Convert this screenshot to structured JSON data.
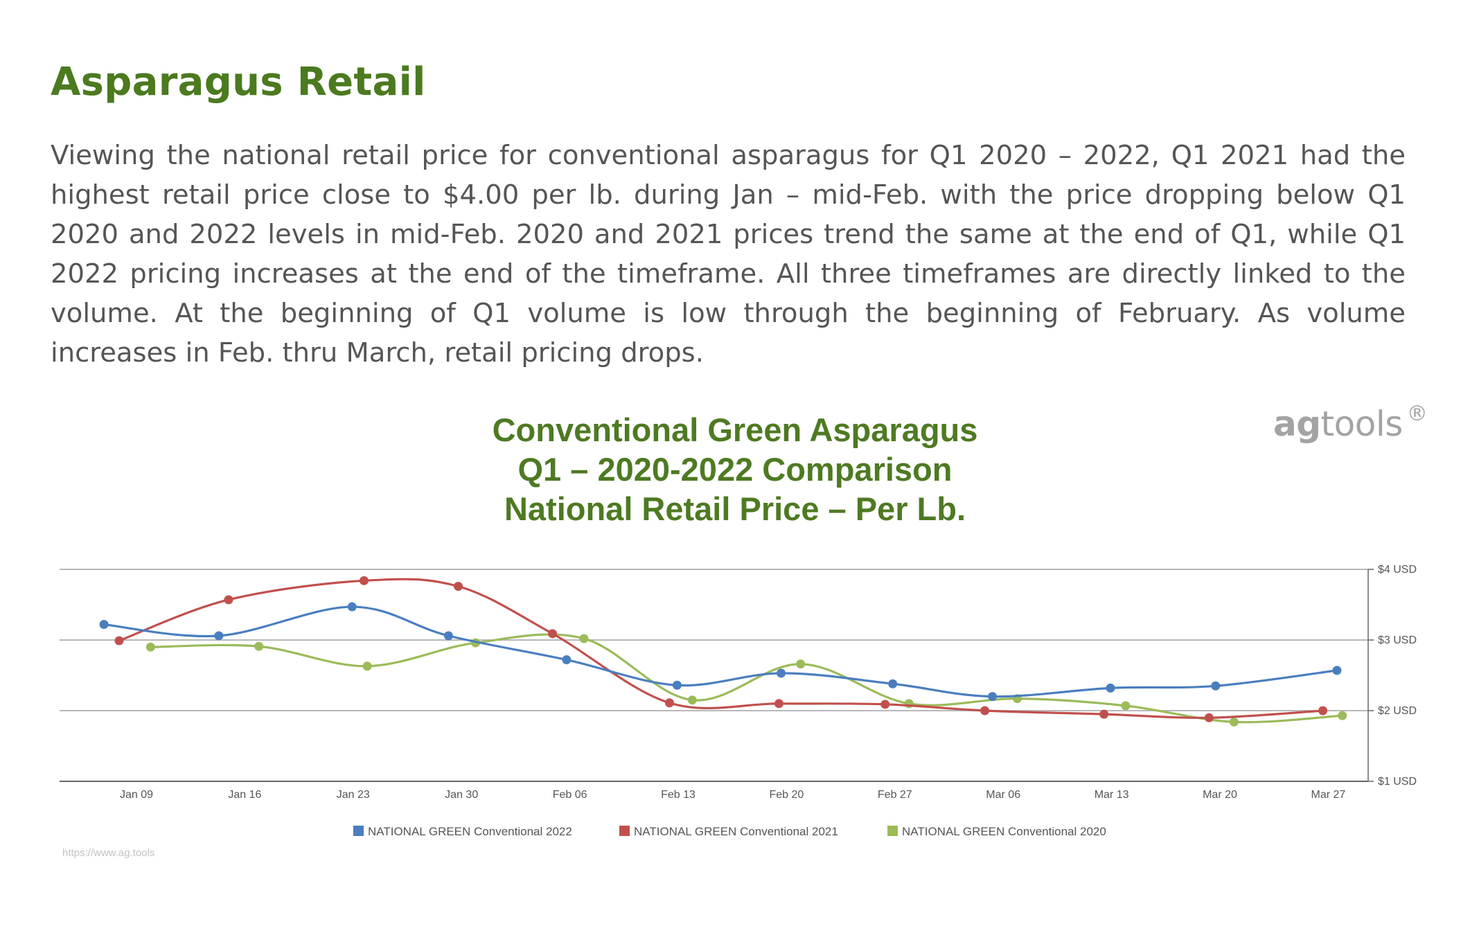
{
  "heading": "Asparagus Retail",
  "paragraph": "Viewing the national retail price for conventional asparagus for Q1 2020 – 2022, Q1 2021 had the highest retail price close to $4.00 per lb. during Jan – mid-Feb. with the price dropping below Q1 2020 and 2022 levels in mid-Feb.  2020 and 2021 prices trend the same at the end of Q1, while Q1 2022 pricing increases at the end of the timeframe.   All three timeframes are directly linked to the volume.  At the beginning of Q1 volume is low through the beginning of February.  As volume increases in Feb. thru March, retail pricing drops.",
  "brand": {
    "part1": "ag",
    "part2": "tools",
    "mark": "®"
  },
  "chart_data": {
    "type": "line",
    "title_lines": [
      "Conventional Green Asparagus",
      "Q1 – 2020-2022 Comparison",
      "National Retail Price – Per Lb."
    ],
    "x_ticks": [
      "Jan 09",
      "Jan 16",
      "Jan 23",
      "Jan 30",
      "Feb 06",
      "Feb 13",
      "Feb 20",
      "Feb 27",
      "Mar 06",
      "Mar 13",
      "Mar 20",
      "Mar 27"
    ],
    "y_ticks": [
      "$1 USD",
      "$2 USD",
      "$3 USD",
      "$4 USD"
    ],
    "ylim": [
      1,
      4
    ],
    "y_axis_side": "right",
    "grid": true,
    "legend_position": "bottom",
    "source_url": "https://www.ag.tools",
    "series": [
      {
        "name": "NATIONAL  GREEN  Conventional 2022",
        "color": "#4a7ebf",
        "points": [
          [
            -0.3,
            3.22
          ],
          [
            0.76,
            3.06
          ],
          [
            1.99,
            3.47
          ],
          [
            2.88,
            3.06
          ],
          [
            3.97,
            2.72
          ],
          [
            4.99,
            2.36
          ],
          [
            5.95,
            2.53
          ],
          [
            6.98,
            2.38
          ],
          [
            7.9,
            2.2
          ],
          [
            8.99,
            2.32
          ],
          [
            9.96,
            2.35
          ],
          [
            11.08,
            2.57
          ]
        ]
      },
      {
        "name": "NATIONAL  GREEN  Conventional 2021",
        "color": "#c0504d",
        "points": [
          [
            -0.16,
            2.99
          ],
          [
            0.85,
            3.57
          ],
          [
            2.1,
            3.84
          ],
          [
            2.97,
            3.76
          ],
          [
            3.84,
            3.09
          ],
          [
            4.92,
            2.11
          ],
          [
            5.93,
            2.1
          ],
          [
            6.91,
            2.09
          ],
          [
            7.83,
            2.0
          ],
          [
            8.93,
            1.95
          ],
          [
            9.9,
            1.9
          ],
          [
            10.95,
            2.0
          ]
        ]
      },
      {
        "name": "NATIONAL  GREEN  Conventional 2020",
        "color": "#9bbb59",
        "points": [
          [
            0.13,
            2.9
          ],
          [
            1.13,
            2.91
          ],
          [
            2.13,
            2.63
          ],
          [
            3.13,
            2.96
          ],
          [
            4.13,
            3.02
          ],
          [
            5.13,
            2.15
          ],
          [
            6.13,
            2.66
          ],
          [
            7.13,
            2.1
          ],
          [
            8.13,
            2.17
          ],
          [
            9.13,
            2.07
          ],
          [
            10.13,
            1.84
          ],
          [
            11.13,
            1.93
          ]
        ]
      }
    ]
  }
}
